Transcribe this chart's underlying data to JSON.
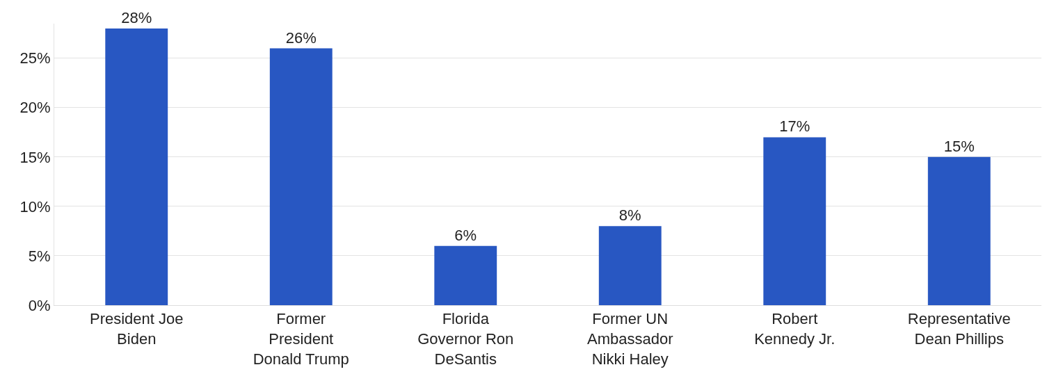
{
  "chart_data": {
    "type": "bar",
    "categories": [
      "President Joe Biden",
      "Former President Donald Trump",
      "Florida Governor Ron DeSantis",
      "Former UN Ambassador Nikki Haley",
      "Robert Kennedy Jr.",
      "Representative Dean Phillips"
    ],
    "values": [
      28,
      26,
      6,
      8,
      17,
      15
    ],
    "value_labels": [
      "28%",
      "26%",
      "6%",
      "8%",
      "17%",
      "15%"
    ],
    "color": "#2857c2",
    "ylim": [
      0,
      28.5
    ],
    "yticks": [
      {
        "value": 0,
        "label": "0%"
      },
      {
        "value": 5,
        "label": "5%"
      },
      {
        "value": 10,
        "label": "10%"
      },
      {
        "value": 15,
        "label": "15%"
      },
      {
        "value": 20,
        "label": "20%"
      },
      {
        "value": 25,
        "label": "25%"
      }
    ],
    "grid": "y"
  }
}
